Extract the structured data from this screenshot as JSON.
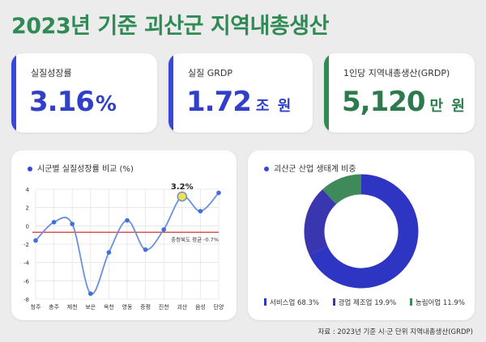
{
  "header": {
    "title": "2023년 기준 괴산군 지역내총생산"
  },
  "kpis": [
    {
      "label": "실질성장률",
      "value": "3.16",
      "unit": "%"
    },
    {
      "label": "실질 GRDP",
      "value": "1.72",
      "unit": "조 원"
    },
    {
      "label": "1인당 지역내총생산(GRDP)",
      "value": "5,120",
      "unit": "만 원"
    }
  ],
  "line_panel": {
    "title": "시군별 실질성장률 비교 (%)"
  },
  "donut_panel": {
    "title": "괴산군 산업 생태계 비중"
  },
  "footer": {
    "source": "자료 : 2023년 기준 시·군 단위 지역내총생산(GRDP)"
  },
  "colors": {
    "blue": "#3847d6",
    "green": "#2f8a55",
    "purple": "#3a36b0",
    "donut_blue": "#2e35c2",
    "donut_green": "#3f8a5a"
  },
  "chart_data": [
    {
      "type": "line",
      "title": "시군별 실질성장률 비교 (%)",
      "categories": [
        "청주",
        "충주",
        "제천",
        "보은",
        "옥천",
        "영동",
        "증평",
        "진천",
        "괴산",
        "음성",
        "단양"
      ],
      "values": [
        -1.6,
        0.4,
        0.2,
        -7.4,
        -2.9,
        0.6,
        -2.6,
        -0.4,
        3.2,
        1.6,
        3.6
      ],
      "ylim": [
        -8,
        4
      ],
      "yticks": [
        4,
        2,
        0,
        -2,
        -4,
        -6,
        -8
      ],
      "highlight": {
        "category": "괴산",
        "label": "3.2%"
      },
      "reference_line": {
        "value": -0.7,
        "label": "충청북도 평균 -0.7%"
      },
      "grid": true
    },
    {
      "type": "pie",
      "title": "괴산군 산업 생태계 비중",
      "donut": true,
      "slices": [
        {
          "label": "서비스업",
          "value": 68.3,
          "display": "서비스업 68.3%",
          "color": "#2e35c2"
        },
        {
          "label": "광업 제조업",
          "value": 19.9,
          "display": "광업 제조업 19.9%",
          "color": "#3a36b0"
        },
        {
          "label": "농림어업",
          "value": 11.9,
          "display": "농림어업 11.9%",
          "color": "#3f8a5a"
        }
      ]
    }
  ]
}
